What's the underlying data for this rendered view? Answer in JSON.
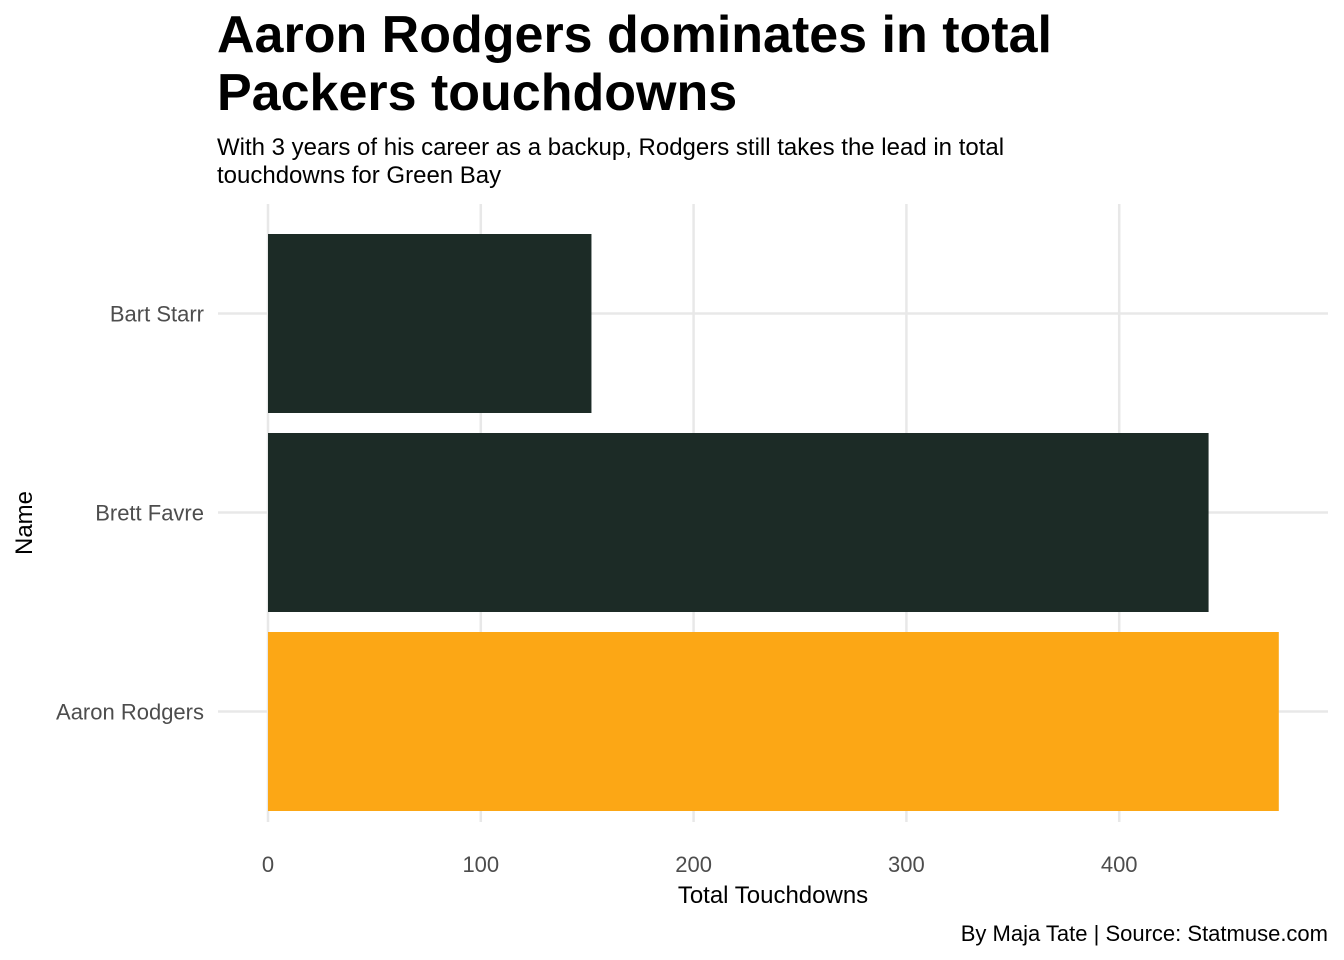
{
  "title": "Aaron Rodgers dominates in total Packers touchdowns",
  "subtitle": "With 3 years of his career as a backup, Rodgers still takes the lead in total touchdowns for Green Bay",
  "caption": "By Maja Tate | Source: Statmuse.com",
  "colors": {
    "default_bar": "#1c2b26",
    "highlight_bar": "#fca715",
    "grid": "#e8e8e8",
    "tick_text": "#4d4d4d"
  },
  "chart_data": {
    "type": "bar",
    "orientation": "horizontal",
    "title": "Aaron Rodgers dominates in total Packers touchdowns",
    "subtitle": "With 3 years of his career as a backup, Rodgers still takes the lead in total touchdowns for Green Bay",
    "xlabel": "Total Touchdowns",
    "ylabel": "Name",
    "categories": [
      "Bart Starr",
      "Brett Favre",
      "Aaron Rodgers"
    ],
    "values": [
      152,
      442,
      475
    ],
    "highlight": [
      "Aaron Rodgers"
    ],
    "xlim": [
      0,
      475
    ],
    "xticks": [
      0,
      100,
      200,
      300,
      400
    ],
    "grid": true,
    "legend": "none"
  }
}
